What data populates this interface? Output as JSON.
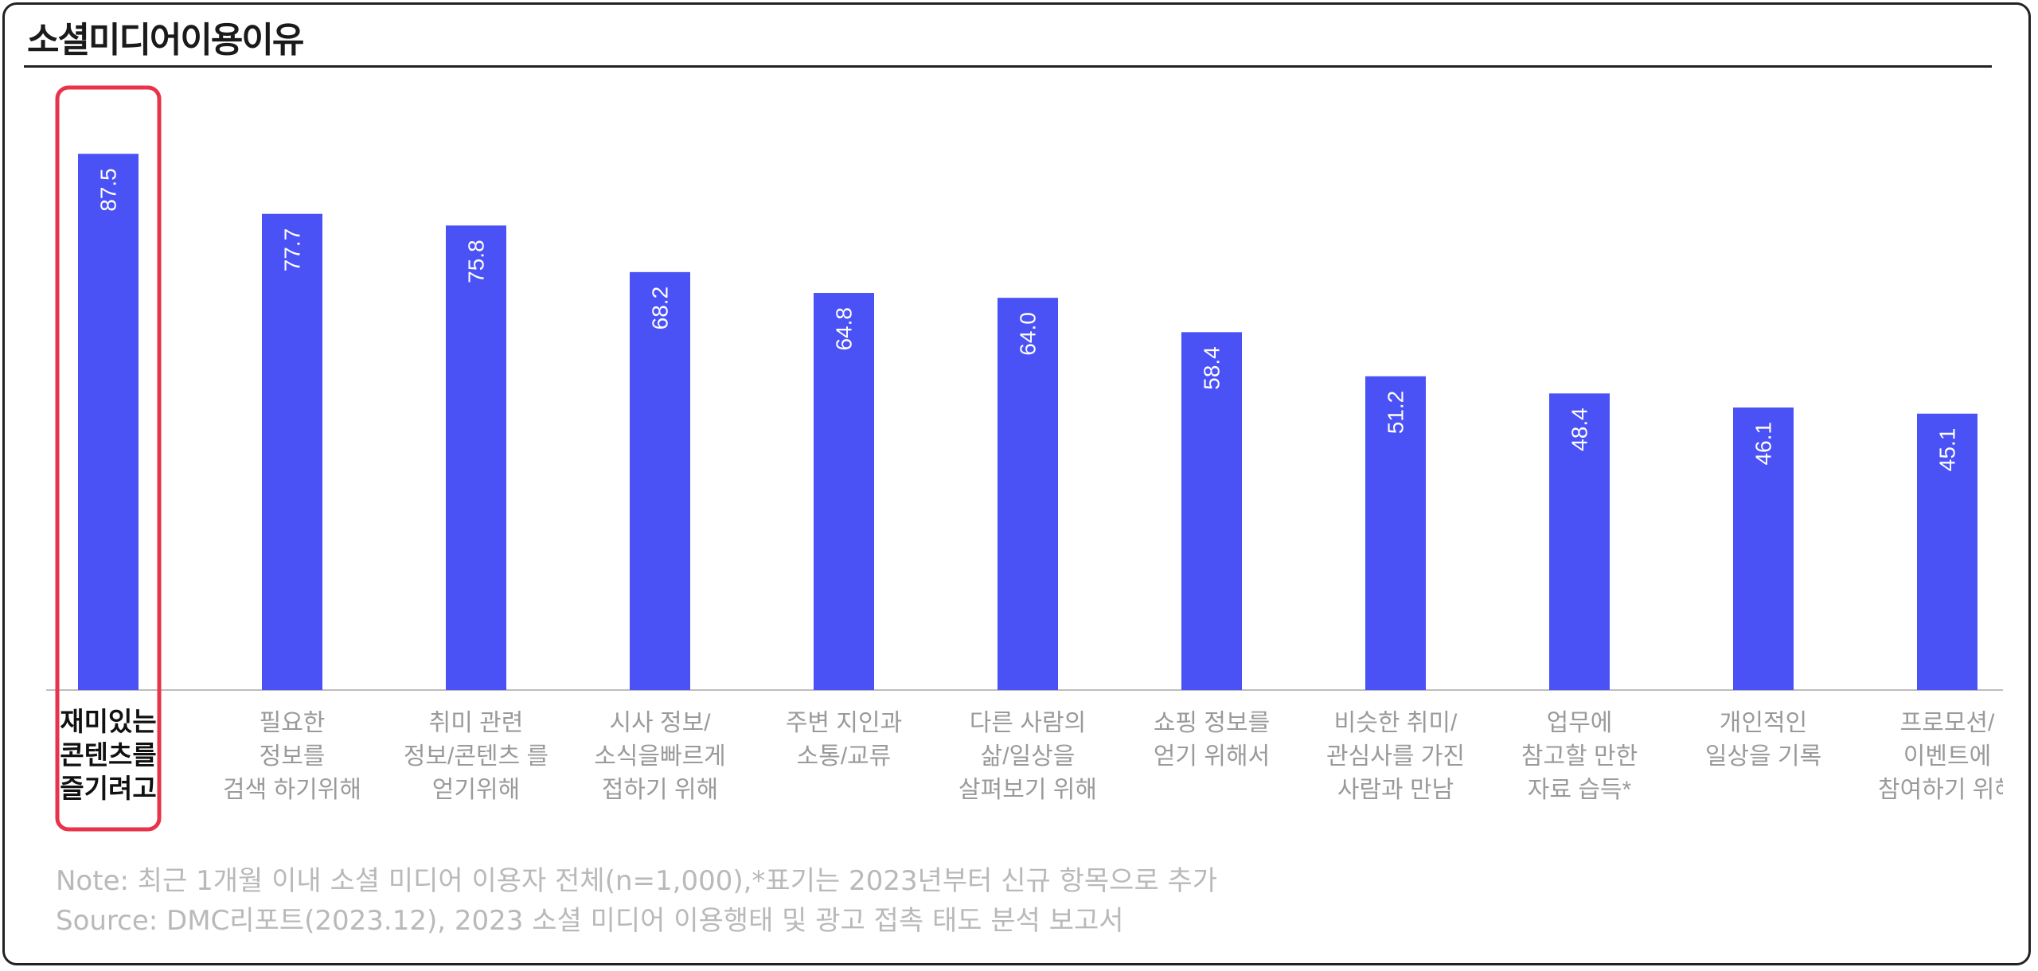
{
  "title": "소셜미디어이용이유",
  "chart_data": {
    "type": "bar",
    "categories": [
      [
        "재미있는",
        "콘텐츠를",
        "즐기려고"
      ],
      [
        "필요한",
        "정보를",
        "검색 하기위해"
      ],
      [
        "취미 관련",
        "정보/콘텐츠 를",
        "얻기위해"
      ],
      [
        "시사 정보/",
        "소식을빠르게",
        "접하기 위해"
      ],
      [
        "주변 지인과",
        "소통/교류"
      ],
      [
        "다른 사람의",
        "삶/일상을",
        "살펴보기 위해"
      ],
      [
        "쇼핑 정보를",
        "얻기 위해서"
      ],
      [
        "비슷한 취미/",
        "관심사를 가진",
        "사람과 만남"
      ],
      [
        "업무에",
        "참고할 만한",
        "자료 습득*"
      ],
      [
        "개인적인",
        "일상을 기록"
      ],
      [
        "프로모션/",
        "이벤트에",
        "참여하기 위해"
      ]
    ],
    "values": [
      87.5,
      77.7,
      75.8,
      68.2,
      64.8,
      64.0,
      58.4,
      51.2,
      48.4,
      46.1,
      45.1
    ],
    "value_labels": [
      "87.5",
      "77.7",
      "75.8",
      "68.2",
      "64.8",
      "64.0",
      "58.4",
      "51.2",
      "48.4",
      "46.1",
      "45.1"
    ],
    "ylim": [
      0,
      100
    ],
    "highlight_index": 0,
    "grid": false,
    "colors": {
      "bar": "#4a52f5",
      "highlight_box": "#e8334a",
      "label": "#9a9a9a",
      "highlight_label": "#111111"
    }
  },
  "notes": {
    "note": "Note: 최근 1개월 이내 소셜 미디어 이용자 전체(n=1,000),*표기는 2023년부터 신규 항목으로 추가",
    "source": "Source: DMC리포트(2023.12), 2023 소셜 미디어 이용행태 및 광고 접촉 태도 분석 보고서"
  }
}
